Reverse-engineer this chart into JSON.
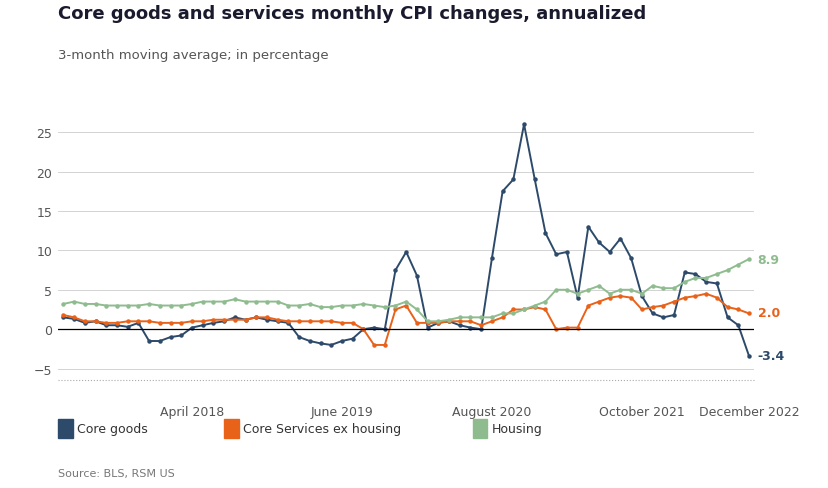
{
  "title": "Core goods and services monthly CPI changes, annualized",
  "subtitle": "3-month moving average; in percentage",
  "source": "Source: BLS, RSM US",
  "core_goods_color": "#2d4a6b",
  "core_services_color": "#e8621a",
  "housing_color": "#8fbc8f",
  "background_color": "#ffffff",
  "ylim": [
    -6.5,
    27
  ],
  "yticks": [
    -5,
    0,
    5,
    10,
    15,
    20,
    25
  ],
  "end_labels": {
    "core_goods": "-3.4",
    "core_services": "2.0",
    "housing": "8.9"
  },
  "x_tick_labels": [
    "April 2018",
    "June 2019",
    "August 2020",
    "October 2021",
    "December 2022"
  ],
  "tick_positions": [
    12,
    26,
    40,
    54,
    64
  ],
  "core_goods": [
    1.5,
    1.3,
    0.8,
    1.0,
    0.5,
    0.5,
    0.3,
    0.8,
    -1.5,
    -1.5,
    -1.0,
    -0.8,
    0.2,
    0.5,
    0.8,
    1.0,
    1.5,
    1.2,
    1.5,
    1.2,
    1.0,
    0.8,
    -1.0,
    -1.5,
    -1.8,
    -2.0,
    -1.5,
    -1.2,
    0.0,
    0.2,
    0.0,
    7.5,
    9.8,
    6.8,
    0.2,
    0.8,
    1.0,
    0.5,
    0.2,
    0.0,
    9.0,
    17.5,
    19.0,
    26.0,
    19.0,
    12.2,
    9.5,
    9.8,
    4.0,
    13.0,
    11.0,
    9.8,
    11.5,
    9.0,
    4.2,
    2.0,
    1.5,
    1.8,
    7.2,
    7.0,
    6.0,
    5.8,
    1.5,
    0.5,
    -3.4
  ],
  "core_services": [
    1.8,
    1.5,
    1.0,
    1.0,
    0.8,
    0.8,
    1.0,
    1.0,
    1.0,
    0.8,
    0.8,
    0.8,
    1.0,
    1.0,
    1.2,
    1.2,
    1.2,
    1.2,
    1.5,
    1.5,
    1.2,
    1.0,
    1.0,
    1.0,
    1.0,
    1.0,
    0.8,
    0.8,
    0.0,
    -2.0,
    -2.0,
    2.5,
    3.0,
    0.8,
    0.8,
    0.8,
    1.0,
    1.0,
    1.0,
    0.5,
    1.0,
    1.5,
    2.5,
    2.5,
    2.8,
    2.5,
    0.0,
    0.2,
    0.2,
    3.0,
    3.5,
    4.0,
    4.2,
    4.0,
    2.5,
    2.8,
    3.0,
    3.5,
    4.0,
    4.2,
    4.5,
    4.0,
    2.8,
    2.5,
    2.0
  ],
  "housing": [
    3.2,
    3.5,
    3.2,
    3.2,
    3.0,
    3.0,
    3.0,
    3.0,
    3.2,
    3.0,
    3.0,
    3.0,
    3.2,
    3.5,
    3.5,
    3.5,
    3.8,
    3.5,
    3.5,
    3.5,
    3.5,
    3.0,
    3.0,
    3.2,
    2.8,
    2.8,
    3.0,
    3.0,
    3.2,
    3.0,
    2.8,
    3.0,
    3.5,
    2.5,
    1.0,
    1.0,
    1.2,
    1.5,
    1.5,
    1.5,
    1.5,
    2.0,
    2.0,
    2.5,
    3.0,
    3.5,
    5.0,
    5.0,
    4.5,
    5.0,
    5.5,
    4.5,
    5.0,
    5.0,
    4.5,
    5.5,
    5.2,
    5.2,
    6.0,
    6.5,
    6.5,
    7.0,
    7.5,
    8.2,
    8.9
  ]
}
